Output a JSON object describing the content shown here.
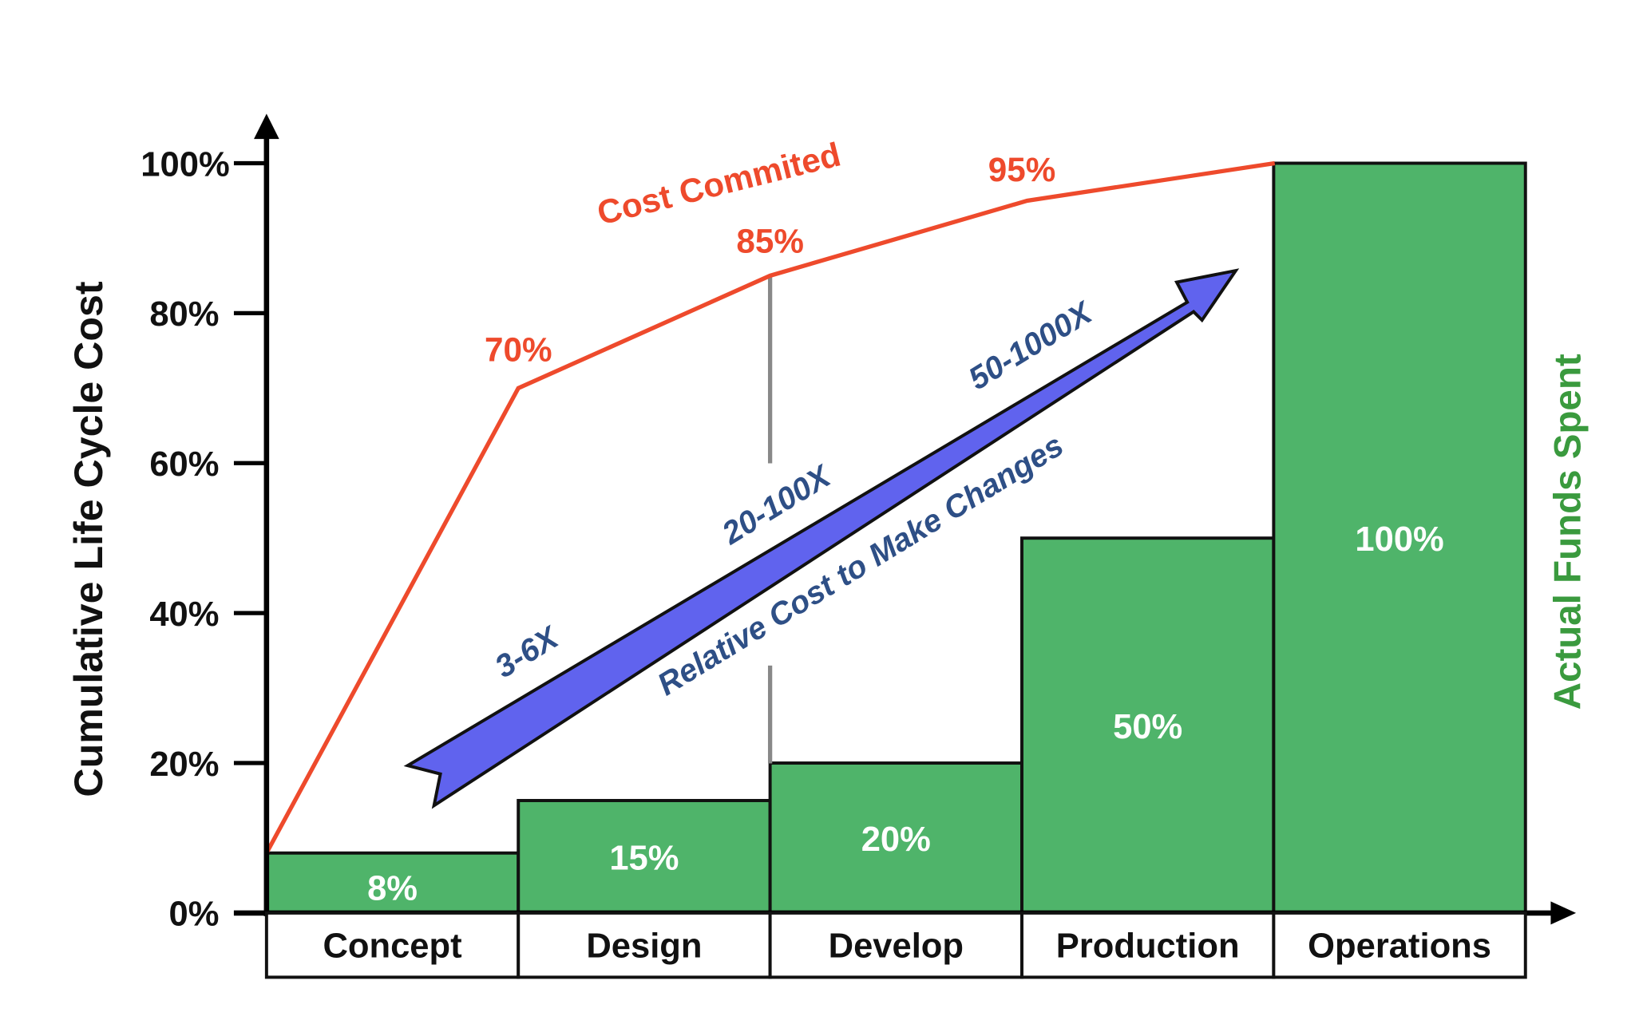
{
  "chart_data": {
    "type": "bar",
    "categories": [
      "Concept",
      "Design",
      "Develop",
      "Production",
      "Operations"
    ],
    "ylabel": "Cumulative Life Cycle Cost",
    "y2label": "Actual Funds Spent",
    "ylim": [
      0,
      100
    ],
    "yticks": [
      "0%",
      "20%",
      "40%",
      "60%",
      "80%",
      "100%"
    ],
    "grid": false,
    "series": [
      {
        "name": "Actual Funds Spent",
        "type": "bar",
        "color": "#4fb46a",
        "values": [
          8,
          15,
          20,
          50,
          100
        ],
        "labels": [
          "8%",
          "15%",
          "20%",
          "50%",
          "100%"
        ]
      },
      {
        "name": "Cost Commited",
        "type": "line",
        "color": "#ee4a2c",
        "points": [
          [
            0,
            8
          ],
          [
            1,
            70
          ],
          [
            2,
            85
          ],
          [
            3,
            95
          ],
          [
            4,
            100
          ]
        ],
        "labels": [
          "70%",
          "85%",
          "95%"
        ]
      }
    ],
    "arrow": {
      "label": "Relative Cost to Make Changes",
      "color": "#6063ee",
      "multipliers": [
        "3-6X",
        "20-100X",
        "50-1000X"
      ]
    }
  }
}
